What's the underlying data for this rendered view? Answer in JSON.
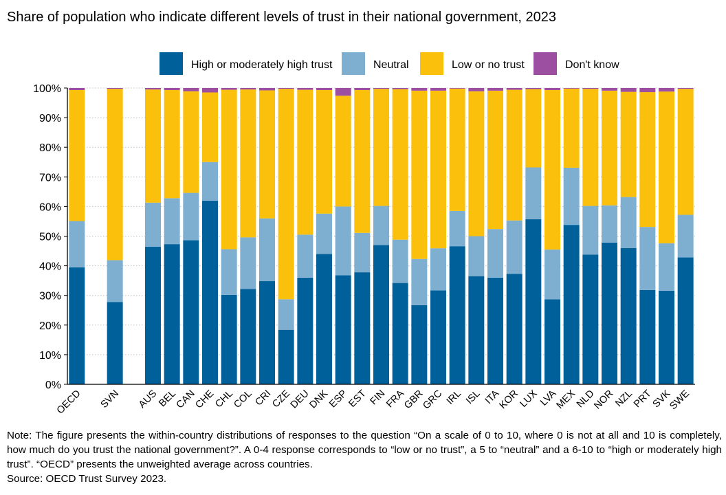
{
  "chart_data": {
    "type": "stacked-bar",
    "title": "Share of population who indicate different levels of trust in their national government, 2023",
    "xlabel": "",
    "ylabel": "",
    "ylim": [
      0,
      100
    ],
    "y_ticks": [
      "0%",
      "10%",
      "20%",
      "30%",
      "40%",
      "50%",
      "60%",
      "70%",
      "80%",
      "90%",
      "100%"
    ],
    "legend_position": "top",
    "grid": true,
    "categories": [
      "OECD",
      "",
      "SVN",
      "",
      "AUS",
      "BEL",
      "CAN",
      "CHE",
      "CHL",
      "COL",
      "CRI",
      "CZE",
      "DEU",
      "DNK",
      "ESP",
      "EST",
      "FIN",
      "FRA",
      "GBR",
      "GRC",
      "IRL",
      "ISL",
      "ITA",
      "KOR",
      "LUX",
      "LVA",
      "MEX",
      "NLD",
      "NOR",
      "NZL",
      "PRT",
      "SVK",
      "SWE"
    ],
    "series": [
      {
        "name": "High or moderately high trust",
        "color": "#00619A",
        "values": [
          39.5,
          null,
          27.8,
          null,
          46.4,
          47.3,
          48.6,
          62.0,
          30.2,
          32.2,
          34.8,
          18.4,
          36.0,
          44.0,
          36.8,
          37.8,
          47.0,
          34.2,
          26.7,
          31.7,
          46.6,
          36.5,
          36.0,
          37.3,
          55.7,
          28.7,
          53.8,
          43.8,
          47.8,
          46.0,
          31.8,
          31.6,
          42.8
        ]
      },
      {
        "name": "Neutral",
        "color": "#7FAFD0",
        "values": [
          15.6,
          null,
          14.1,
          null,
          14.9,
          15.5,
          16.0,
          13.0,
          15.4,
          17.4,
          21.2,
          10.3,
          14.5,
          13.6,
          23.2,
          13.3,
          13.2,
          14.6,
          15.6,
          14.2,
          11.9,
          13.5,
          16.4,
          18.0,
          17.5,
          16.8,
          19.3,
          16.4,
          12.6,
          17.2,
          21.3,
          16.0,
          14.4
        ]
      },
      {
        "name": "Low or no trust",
        "color": "#FBC00C",
        "values": [
          44.2,
          null,
          57.8,
          null,
          38.2,
          36.5,
          34.3,
          23.5,
          53.8,
          49.9,
          43.2,
          71.0,
          48.9,
          41.7,
          37.4,
          48.2,
          39.5,
          50.8,
          56.8,
          53.2,
          41.3,
          48.9,
          46.7,
          44.1,
          26.4,
          53.8,
          26.7,
          39.5,
          38.7,
          35.5,
          45.5,
          51.2,
          42.5
        ]
      },
      {
        "name": "Don't know",
        "color": "#9C4FA1",
        "values": [
          0.7,
          null,
          0.3,
          null,
          0.5,
          0.7,
          1.1,
          1.5,
          0.6,
          0.5,
          0.8,
          0.3,
          0.6,
          0.7,
          2.6,
          0.7,
          0.3,
          0.4,
          0.9,
          0.9,
          0.2,
          1.1,
          0.9,
          0.6,
          0.4,
          0.7,
          0.2,
          0.3,
          0.9,
          1.3,
          1.4,
          1.2,
          0.3
        ]
      }
    ]
  },
  "notes": {
    "note": "Note: The figure presents the within-country distributions of responses to the question “On a scale of 0 to 10, where 0 is not at all and 10 is completely, how much do you trust the national government?”. A 0-4 response corresponds to “low or no trust”, a 5 to “neutral” and a 6-10 to “high or moderately high trust”. “OECD” presents the unweighted average across countries.",
    "source": "Source: OECD Trust Survey 2023."
  }
}
